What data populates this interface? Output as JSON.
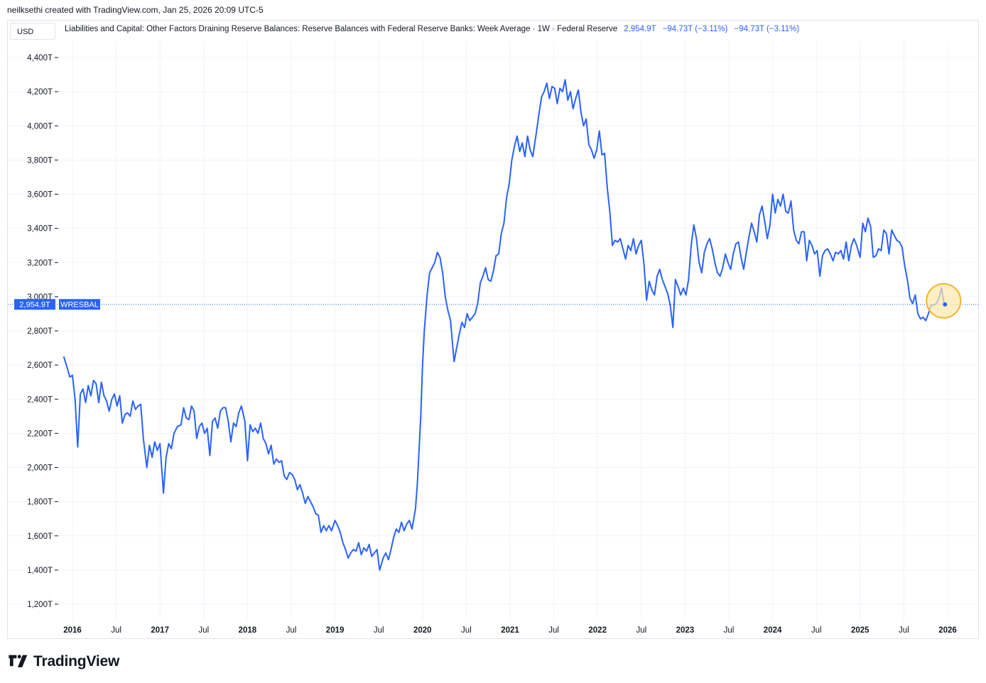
{
  "attribution": "neilksethi created with TradingView.com, Jan 25, 2026 20:09 UTC-5",
  "currency": "USD",
  "legend": {
    "title": "Liabilities and Capital: Other Factors Draining Reserve Balances: Reserve Balances with Federal Reserve Banks: Week Average · 1W · Federal Reserve",
    "last": "2,954.9T",
    "change1": "−94.73T (−3.11%)",
    "change2": "−94.73T (−3.11%)"
  },
  "price_label": {
    "value": "2,954.9T",
    "symbol": "WRESBAL"
  },
  "logo_text": "TradingView",
  "colors": {
    "line": "#2962ff",
    "highlight_fill": "#ffe8a8",
    "highlight_stroke": "#f7b32b",
    "grid": "#f0f3fa"
  },
  "chart_data": {
    "type": "line",
    "series": [
      {
        "name": "WRESBAL"
      }
    ],
    "x_range": [
      "2015-10",
      "2026-04"
    ],
    "ylim": [
      1100,
      4550
    ],
    "y_ticks": [
      1200,
      1400,
      1600,
      1800,
      2000,
      2200,
      2400,
      2600,
      2800,
      3000,
      3200,
      3400,
      3600,
      3800,
      4000,
      4200,
      4400
    ],
    "y_tick_labels": [
      "1,200T",
      "1,400T",
      "1,600T",
      "1,800T",
      "2,000T",
      "2,200T",
      "2,400T",
      "2,600T",
      "2,800T",
      "3,000T",
      "3,200T",
      "3,400T",
      "3,600T",
      "3,800T",
      "4,000T",
      "4,200T",
      "4,400T"
    ],
    "x_ticks": [
      {
        "label": "2016",
        "t": 2016.0,
        "year": true
      },
      {
        "label": "Jul",
        "t": 2016.5,
        "year": false
      },
      {
        "label": "2017",
        "t": 2017.0,
        "year": true
      },
      {
        "label": "Jul",
        "t": 2017.5,
        "year": false
      },
      {
        "label": "2018",
        "t": 2018.0,
        "year": true
      },
      {
        "label": "Jul",
        "t": 2018.5,
        "year": false
      },
      {
        "label": "2019",
        "t": 2019.0,
        "year": true
      },
      {
        "label": "Jul",
        "t": 2019.5,
        "year": false
      },
      {
        "label": "2020",
        "t": 2020.0,
        "year": true
      },
      {
        "label": "Jul",
        "t": 2020.5,
        "year": false
      },
      {
        "label": "2021",
        "t": 2021.0,
        "year": true
      },
      {
        "label": "Jul",
        "t": 2021.5,
        "year": false
      },
      {
        "label": "2022",
        "t": 2022.0,
        "year": true
      },
      {
        "label": "Jul",
        "t": 2022.5,
        "year": false
      },
      {
        "label": "2023",
        "t": 2023.0,
        "year": true
      },
      {
        "label": "Jul",
        "t": 2023.5,
        "year": false
      },
      {
        "label": "2024",
        "t": 2024.0,
        "year": true
      },
      {
        "label": "Jul",
        "t": 2024.5,
        "year": false
      },
      {
        "label": "2025",
        "t": 2025.0,
        "year": true
      },
      {
        "label": "Jul",
        "t": 2025.5,
        "year": false
      },
      {
        "label": "2026",
        "t": 2026.0,
        "year": true
      }
    ],
    "points": [
      [
        2015.9,
        2650
      ],
      [
        2015.93,
        2600
      ],
      [
        2015.97,
        2530
      ],
      [
        2016.0,
        2540
      ],
      [
        2016.03,
        2400
      ],
      [
        2016.06,
        2120
      ],
      [
        2016.09,
        2430
      ],
      [
        2016.12,
        2460
      ],
      [
        2016.15,
        2380
      ],
      [
        2016.18,
        2480
      ],
      [
        2016.21,
        2420
      ],
      [
        2016.24,
        2510
      ],
      [
        2016.27,
        2490
      ],
      [
        2016.3,
        2380
      ],
      [
        2016.33,
        2500
      ],
      [
        2016.36,
        2420
      ],
      [
        2016.39,
        2390
      ],
      [
        2016.42,
        2330
      ],
      [
        2016.45,
        2400
      ],
      [
        2016.48,
        2430
      ],
      [
        2016.51,
        2360
      ],
      [
        2016.54,
        2420
      ],
      [
        2016.57,
        2260
      ],
      [
        2016.6,
        2310
      ],
      [
        2016.63,
        2320
      ],
      [
        2016.66,
        2300
      ],
      [
        2016.69,
        2390
      ],
      [
        2016.72,
        2340
      ],
      [
        2016.75,
        2360
      ],
      [
        2016.78,
        2370
      ],
      [
        2016.81,
        2170
      ],
      [
        2016.85,
        2000
      ],
      [
        2016.88,
        2130
      ],
      [
        2016.91,
        2060
      ],
      [
        2016.94,
        2150
      ],
      [
        2016.97,
        2100
      ],
      [
        2017.0,
        2140
      ],
      [
        2017.04,
        1850
      ],
      [
        2017.07,
        2060
      ],
      [
        2017.1,
        2140
      ],
      [
        2017.13,
        2110
      ],
      [
        2017.16,
        2200
      ],
      [
        2017.2,
        2240
      ],
      [
        2017.24,
        2250
      ],
      [
        2017.27,
        2350
      ],
      [
        2017.3,
        2290
      ],
      [
        2017.33,
        2280
      ],
      [
        2017.36,
        2360
      ],
      [
        2017.39,
        2330
      ],
      [
        2017.42,
        2170
      ],
      [
        2017.45,
        2240
      ],
      [
        2017.48,
        2260
      ],
      [
        2017.51,
        2200
      ],
      [
        2017.54,
        2230
      ],
      [
        2017.57,
        2070
      ],
      [
        2017.6,
        2270
      ],
      [
        2017.63,
        2290
      ],
      [
        2017.66,
        2230
      ],
      [
        2017.69,
        2330
      ],
      [
        2017.72,
        2350
      ],
      [
        2017.75,
        2350
      ],
      [
        2017.78,
        2270
      ],
      [
        2017.81,
        2150
      ],
      [
        2017.84,
        2260
      ],
      [
        2017.87,
        2240
      ],
      [
        2017.9,
        2320
      ],
      [
        2017.93,
        2360
      ],
      [
        2017.97,
        2270
      ],
      [
        2018.0,
        2040
      ],
      [
        2018.03,
        2250
      ],
      [
        2018.06,
        2210
      ],
      [
        2018.09,
        2230
      ],
      [
        2018.12,
        2200
      ],
      [
        2018.15,
        2260
      ],
      [
        2018.18,
        2170
      ],
      [
        2018.21,
        2140
      ],
      [
        2018.24,
        2080
      ],
      [
        2018.27,
        2130
      ],
      [
        2018.3,
        2020
      ],
      [
        2018.33,
        2050
      ],
      [
        2018.36,
        2030
      ],
      [
        2018.39,
        2040
      ],
      [
        2018.42,
        1950
      ],
      [
        2018.45,
        1930
      ],
      [
        2018.48,
        1970
      ],
      [
        2018.51,
        1960
      ],
      [
        2018.54,
        1930
      ],
      [
        2018.57,
        1870
      ],
      [
        2018.6,
        1900
      ],
      [
        2018.63,
        1850
      ],
      [
        2018.66,
        1790
      ],
      [
        2018.69,
        1830
      ],
      [
        2018.72,
        1800
      ],
      [
        2018.75,
        1770
      ],
      [
        2018.78,
        1730
      ],
      [
        2018.81,
        1720
      ],
      [
        2018.84,
        1620
      ],
      [
        2018.87,
        1660
      ],
      [
        2018.9,
        1630
      ],
      [
        2018.93,
        1660
      ],
      [
        2018.96,
        1630
      ],
      [
        2019.0,
        1690
      ],
      [
        2019.03,
        1660
      ],
      [
        2019.06,
        1620
      ],
      [
        2019.09,
        1560
      ],
      [
        2019.12,
        1520
      ],
      [
        2019.15,
        1470
      ],
      [
        2019.18,
        1500
      ],
      [
        2019.21,
        1520
      ],
      [
        2019.24,
        1510
      ],
      [
        2019.27,
        1560
      ],
      [
        2019.3,
        1490
      ],
      [
        2019.33,
        1530
      ],
      [
        2019.36,
        1510
      ],
      [
        2019.39,
        1550
      ],
      [
        2019.42,
        1480
      ],
      [
        2019.45,
        1500
      ],
      [
        2019.48,
        1520
      ],
      [
        2019.51,
        1400
      ],
      [
        2019.55,
        1470
      ],
      [
        2019.58,
        1500
      ],
      [
        2019.61,
        1460
      ],
      [
        2019.64,
        1520
      ],
      [
        2019.67,
        1590
      ],
      [
        2019.7,
        1640
      ],
      [
        2019.73,
        1620
      ],
      [
        2019.76,
        1680
      ],
      [
        2019.79,
        1630
      ],
      [
        2019.82,
        1670
      ],
      [
        2019.85,
        1690
      ],
      [
        2019.88,
        1640
      ],
      [
        2019.9,
        1700
      ],
      [
        2019.92,
        1760
      ],
      [
        2019.94,
        1900
      ],
      [
        2019.96,
        2100
      ],
      [
        2019.98,
        2300
      ],
      [
        2020.0,
        2600
      ],
      [
        2020.02,
        2800
      ],
      [
        2020.05,
        3000
      ],
      [
        2020.08,
        3140
      ],
      [
        2020.11,
        3170
      ],
      [
        2020.14,
        3200
      ],
      [
        2020.17,
        3260
      ],
      [
        2020.2,
        3230
      ],
      [
        2020.23,
        3140
      ],
      [
        2020.26,
        3000
      ],
      [
        2020.29,
        2920
      ],
      [
        2020.32,
        2860
      ],
      [
        2020.36,
        2620
      ],
      [
        2020.39,
        2700
      ],
      [
        2020.42,
        2780
      ],
      [
        2020.45,
        2850
      ],
      [
        2020.48,
        2820
      ],
      [
        2020.51,
        2900
      ],
      [
        2020.54,
        2860
      ],
      [
        2020.57,
        2880
      ],
      [
        2020.6,
        2900
      ],
      [
        2020.63,
        2960
      ],
      [
        2020.66,
        3080
      ],
      [
        2020.69,
        3120
      ],
      [
        2020.72,
        3170
      ],
      [
        2020.75,
        3100
      ],
      [
        2020.78,
        3090
      ],
      [
        2020.81,
        3150
      ],
      [
        2020.84,
        3240
      ],
      [
        2020.87,
        3250
      ],
      [
        2020.9,
        3370
      ],
      [
        2020.93,
        3430
      ],
      [
        2020.96,
        3580
      ],
      [
        2020.99,
        3660
      ],
      [
        2021.02,
        3800
      ],
      [
        2021.05,
        3880
      ],
      [
        2021.08,
        3940
      ],
      [
        2021.11,
        3850
      ],
      [
        2021.14,
        3900
      ],
      [
        2021.17,
        3820
      ],
      [
        2021.2,
        3940
      ],
      [
        2021.23,
        3860
      ],
      [
        2021.26,
        3820
      ],
      [
        2021.3,
        3960
      ],
      [
        2021.33,
        4070
      ],
      [
        2021.36,
        4170
      ],
      [
        2021.39,
        4200
      ],
      [
        2021.42,
        4250
      ],
      [
        2021.45,
        4160
      ],
      [
        2021.48,
        4230
      ],
      [
        2021.51,
        4220
      ],
      [
        2021.54,
        4130
      ],
      [
        2021.57,
        4220
      ],
      [
        2021.6,
        4200
      ],
      [
        2021.63,
        4270
      ],
      [
        2021.66,
        4150
      ],
      [
        2021.69,
        4200
      ],
      [
        2021.72,
        4100
      ],
      [
        2021.75,
        4160
      ],
      [
        2021.78,
        4210
      ],
      [
        2021.81,
        4080
      ],
      [
        2021.84,
        4000
      ],
      [
        2021.87,
        4040
      ],
      [
        2021.9,
        3890
      ],
      [
        2021.93,
        3860
      ],
      [
        2021.96,
        3810
      ],
      [
        2021.99,
        3860
      ],
      [
        2022.02,
        3970
      ],
      [
        2022.05,
        3830
      ],
      [
        2022.08,
        3840
      ],
      [
        2022.11,
        3640
      ],
      [
        2022.14,
        3500
      ],
      [
        2022.17,
        3300
      ],
      [
        2022.2,
        3330
      ],
      [
        2022.23,
        3320
      ],
      [
        2022.26,
        3340
      ],
      [
        2022.29,
        3280
      ],
      [
        2022.32,
        3220
      ],
      [
        2022.35,
        3300
      ],
      [
        2022.38,
        3270
      ],
      [
        2022.41,
        3340
      ],
      [
        2022.44,
        3250
      ],
      [
        2022.47,
        3300
      ],
      [
        2022.5,
        3330
      ],
      [
        2022.53,
        3190
      ],
      [
        2022.56,
        2980
      ],
      [
        2022.59,
        3090
      ],
      [
        2022.62,
        3040
      ],
      [
        2022.65,
        3010
      ],
      [
        2022.68,
        3120
      ],
      [
        2022.71,
        3160
      ],
      [
        2022.74,
        3100
      ],
      [
        2022.77,
        3060
      ],
      [
        2022.8,
        3020
      ],
      [
        2022.83,
        2950
      ],
      [
        2022.86,
        2820
      ],
      [
        2022.89,
        3100
      ],
      [
        2022.92,
        3060
      ],
      [
        2022.95,
        3010
      ],
      [
        2022.98,
        3050
      ],
      [
        2023.01,
        3010
      ],
      [
        2023.04,
        3100
      ],
      [
        2023.07,
        3300
      ],
      [
        2023.1,
        3420
      ],
      [
        2023.13,
        3340
      ],
      [
        2023.16,
        3200
      ],
      [
        2023.19,
        3140
      ],
      [
        2023.22,
        3260
      ],
      [
        2023.25,
        3310
      ],
      [
        2023.28,
        3340
      ],
      [
        2023.31,
        3280
      ],
      [
        2023.34,
        3200
      ],
      [
        2023.37,
        3140
      ],
      [
        2023.4,
        3120
      ],
      [
        2023.43,
        3170
      ],
      [
        2023.46,
        3250
      ],
      [
        2023.49,
        3200
      ],
      [
        2023.52,
        3160
      ],
      [
        2023.55,
        3250
      ],
      [
        2023.58,
        3310
      ],
      [
        2023.61,
        3320
      ],
      [
        2023.64,
        3230
      ],
      [
        2023.67,
        3160
      ],
      [
        2023.7,
        3260
      ],
      [
        2023.73,
        3350
      ],
      [
        2023.76,
        3430
      ],
      [
        2023.79,
        3380
      ],
      [
        2023.82,
        3320
      ],
      [
        2023.85,
        3480
      ],
      [
        2023.88,
        3530
      ],
      [
        2023.91,
        3440
      ],
      [
        2023.94,
        3340
      ],
      [
        2023.97,
        3420
      ],
      [
        2024.0,
        3600
      ],
      [
        2024.03,
        3490
      ],
      [
        2024.06,
        3570
      ],
      [
        2024.09,
        3530
      ],
      [
        2024.12,
        3600
      ],
      [
        2024.15,
        3500
      ],
      [
        2024.18,
        3490
      ],
      [
        2024.21,
        3560
      ],
      [
        2024.24,
        3390
      ],
      [
        2024.27,
        3330
      ],
      [
        2024.3,
        3310
      ],
      [
        2024.33,
        3380
      ],
      [
        2024.36,
        3380
      ],
      [
        2024.39,
        3210
      ],
      [
        2024.42,
        3330
      ],
      [
        2024.45,
        3300
      ],
      [
        2024.48,
        3250
      ],
      [
        2024.51,
        3270
      ],
      [
        2024.54,
        3120
      ],
      [
        2024.57,
        3240
      ],
      [
        2024.6,
        3270
      ],
      [
        2024.63,
        3280
      ],
      [
        2024.66,
        3250
      ],
      [
        2024.69,
        3210
      ],
      [
        2024.72,
        3260
      ],
      [
        2024.75,
        3250
      ],
      [
        2024.78,
        3270
      ],
      [
        2024.81,
        3220
      ],
      [
        2024.84,
        3320
      ],
      [
        2024.87,
        3210
      ],
      [
        2024.9,
        3300
      ],
      [
        2024.93,
        3340
      ],
      [
        2024.96,
        3300
      ],
      [
        2025.0,
        3230
      ],
      [
        2025.03,
        3430
      ],
      [
        2025.06,
        3380
      ],
      [
        2025.09,
        3460
      ],
      [
        2025.12,
        3410
      ],
      [
        2025.15,
        3230
      ],
      [
        2025.18,
        3240
      ],
      [
        2025.21,
        3280
      ],
      [
        2025.24,
        3270
      ],
      [
        2025.27,
        3390
      ],
      [
        2025.3,
        3370
      ],
      [
        2025.33,
        3250
      ],
      [
        2025.36,
        3390
      ],
      [
        2025.39,
        3360
      ],
      [
        2025.42,
        3330
      ],
      [
        2025.45,
        3320
      ],
      [
        2025.48,
        3290
      ],
      [
        2025.51,
        3180
      ],
      [
        2025.54,
        3100
      ],
      [
        2025.57,
        2990
      ],
      [
        2025.6,
        2960
      ],
      [
        2025.63,
        3010
      ],
      [
        2025.66,
        2900
      ],
      [
        2025.69,
        2870
      ],
      [
        2025.72,
        2880
      ],
      [
        2025.75,
        2860
      ],
      [
        2025.78,
        2900
      ],
      [
        2025.81,
        2950
      ],
      [
        2025.84,
        2950
      ],
      [
        2025.87,
        2960
      ],
      [
        2025.9,
        2990
      ],
      [
        2025.93,
        3050
      ],
      [
        2025.96,
        2954.9
      ]
    ],
    "last_point": [
      2025.97,
      2954.9
    ],
    "price_line_value": 2954.9
  }
}
